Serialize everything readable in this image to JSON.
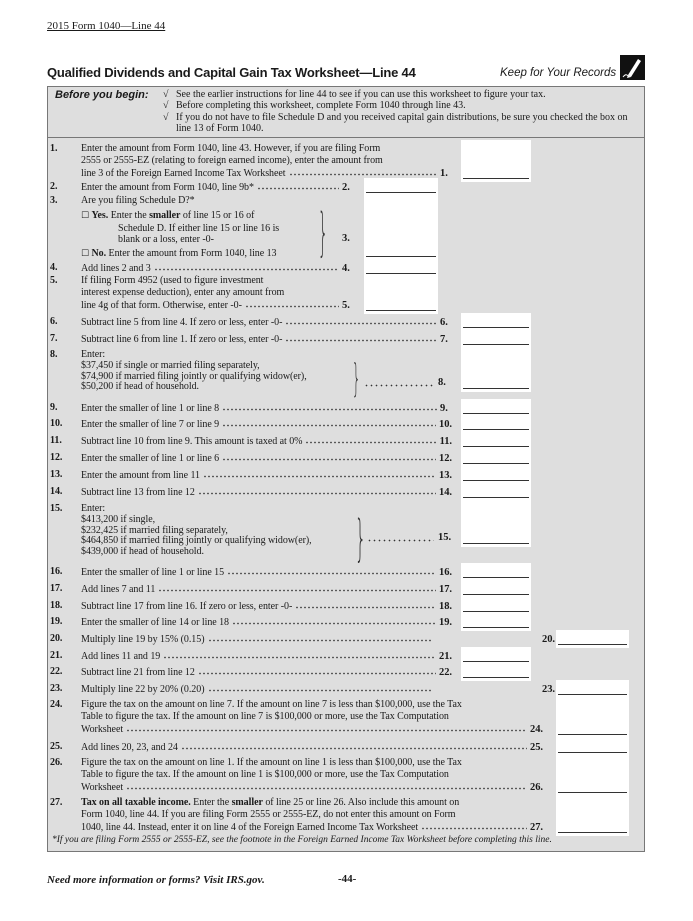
{
  "header": {
    "form_ref": "2015 Form 1040—Line 44"
  },
  "title": "Qualified Dividends and Capital Gain Tax Worksheet—Line 44",
  "keep_records": "Keep for Your Records",
  "keep_icon": "pencil-icon",
  "before_you_begin": {
    "label": "Before you begin:",
    "check_glyph": "√",
    "items": [
      "See the earlier instructions for line 44 to see if you can use this worksheet to figure your tax.",
      "Before completing this worksheet, complete Form 1040 through line 43.",
      "If you do not have to file Schedule D and you received capital gain distributions, be sure you checked the box on line 13 of Form 1040."
    ]
  },
  "lines": [
    {
      "num": "1.",
      "col": "B",
      "label": "1.",
      "text": [
        "Enter the amount from Form 1040, line 43. However, if you are filing Form",
        "2555 or 2555-EZ (relating to foreign earned income), enter the amount from",
        "line 3 of the Foreign Earned Income Tax Worksheet"
      ]
    },
    {
      "num": "2.",
      "col": "A",
      "label": "2.",
      "text": [
        "Enter the amount from Form 1040, line 9b*"
      ]
    },
    {
      "num": "3.",
      "col": "A",
      "label": "3.",
      "text": [
        "Are you filing Schedule D?*"
      ],
      "yes": {
        "option": "Yes.",
        "lines": [
          [
            "Enter the ",
            ""
          ],
          [
            "smaller",
            "b"
          ],
          [
            " of line 15 or 16 of",
            ""
          ]
        ],
        "more": [
          "Schedule D. If either line 15 or line 16 is",
          "blank or a loss, enter -0-"
        ]
      },
      "no": {
        "option": "No.",
        "text": "Enter the amount from Form 1040, line 13"
      },
      "checkbox_glyph": "☐"
    },
    {
      "num": "4.",
      "col": "A",
      "label": "4.",
      "text": [
        "Add lines 2 and 3"
      ]
    },
    {
      "num": "5.",
      "col": "A",
      "label": "5.",
      "text": [
        "If filing Form 4952 (used to figure investment",
        "interest expense deduction), enter any amount from",
        "line 4g of that form. Otherwise, enter -0-"
      ]
    },
    {
      "num": "6.",
      "col": "B",
      "label": "6.",
      "text": [
        "Subtract line 5 from line 4. If zero or less, enter -0-"
      ]
    },
    {
      "num": "7.",
      "col": "B",
      "label": "7.",
      "text": [
        "Subtract line 6 from line 1. If zero or less, enter -0-"
      ]
    },
    {
      "num": "8.",
      "col": "B",
      "label": "8.",
      "text": [
        "Enter:"
      ],
      "options": [
        "$37,450 if single or married filing separately,",
        "$74,900 if married filing jointly or qualifying widow(er),",
        "$50,200 if head of household."
      ]
    },
    {
      "num": "9.",
      "col": "B",
      "label": "9.",
      "text": [
        "Enter the smaller of line 1 or line 8"
      ]
    },
    {
      "num": "10.",
      "col": "B",
      "label": "10.",
      "text": [
        "Enter the smaller of line 7 or line 9"
      ]
    },
    {
      "num": "11.",
      "col": "B",
      "label": "11.",
      "text": [
        "Subtract line 10 from line 9. This amount is taxed at 0%"
      ]
    },
    {
      "num": "12.",
      "col": "B",
      "label": "12.",
      "text": [
        "Enter the smaller of line 1 or line 6"
      ]
    },
    {
      "num": "13.",
      "col": "B",
      "label": "13.",
      "text": [
        "Enter the amount from line 11"
      ]
    },
    {
      "num": "14.",
      "col": "B",
      "label": "14.",
      "text": [
        "Subtract line 13 from line 12"
      ]
    },
    {
      "num": "15.",
      "col": "B",
      "label": "15.",
      "text": [
        "Enter:"
      ],
      "options": [
        "$413,200 if single,",
        "$232,425 if married filing separately,",
        "$464,850 if married filing jointly or qualifying widow(er),",
        "$439,000 if head of household."
      ]
    },
    {
      "num": "16.",
      "col": "B",
      "label": "16.",
      "text": [
        "Enter the smaller of line 1 or line 15"
      ]
    },
    {
      "num": "17.",
      "col": "B",
      "label": "17.",
      "text": [
        "Add lines 7 and 11"
      ]
    },
    {
      "num": "18.",
      "col": "B",
      "label": "18.",
      "text": [
        "Subtract line 17 from line 16. If zero or less, enter -0-"
      ]
    },
    {
      "num": "19.",
      "col": "B",
      "label": "19.",
      "text": [
        "Enter the smaller of line 14 or line 18"
      ]
    },
    {
      "num": "20.",
      "col": "C",
      "label": "20.",
      "text": [
        "Multiply line 19 by 15% (0.15)"
      ]
    },
    {
      "num": "21.",
      "col": "B",
      "label": "21.",
      "text": [
        "Add lines 11 and 19"
      ]
    },
    {
      "num": "22.",
      "col": "B",
      "label": "22.",
      "text": [
        "Subtract line 21 from line 12"
      ]
    },
    {
      "num": "23.",
      "col": "C",
      "label": "23.",
      "text": [
        "Multiply line 22 by 20% (0.20)"
      ]
    },
    {
      "num": "24.",
      "col": "C",
      "label": "24.",
      "text": [
        "Figure the tax on the amount on line 7. If the amount on line 7 is less than $100,000, use the Tax",
        "Table to figure the tax. If the amount on line 7 is $100,000 or more, use the Tax Computation",
        "Worksheet"
      ]
    },
    {
      "num": "25.",
      "col": "C",
      "label": "25.",
      "text": [
        "Add lines 20, 23, and 24"
      ]
    },
    {
      "num": "26.",
      "col": "C",
      "label": "26.",
      "text": [
        "Figure the tax on the amount on line 1. If the amount on line 1 is less than $100,000, use the Tax",
        "Table to figure the tax. If the amount on line 1 is $100,000 or more, use the Tax Computation",
        "Worksheet"
      ]
    },
    {
      "num": "27.",
      "col": "C",
      "label": "27.",
      "text": [
        "Tax on all taxable income. Enter the smaller of line 25 or line 26. Also include this amount on",
        "Form 1040, line 44. If you are filing Form 2555 or 2555-EZ, do not enter this amount on Form",
        "1040, line 44. Instead, enter it on line 4 of the Foreign Earned Income Tax Worksheet"
      ],
      "bold_lead": "Tax on all taxable income.",
      "first_rest_a": " Enter the ",
      "first_bold": "smaller",
      "first_rest_b": " of line 25 or line 26. Also include this amount on"
    }
  ],
  "footnote": "*If you are filing Form 2555 or 2555-EZ, see the footnote in the Foreign Earned Income Tax Worksheet before completing this line.",
  "footer": {
    "help": "Need more information or forms? Visit IRS.gov.",
    "page": "-44-"
  },
  "colors": {
    "panel": "#dedede",
    "border": "#777777",
    "field": "#ffffff"
  }
}
